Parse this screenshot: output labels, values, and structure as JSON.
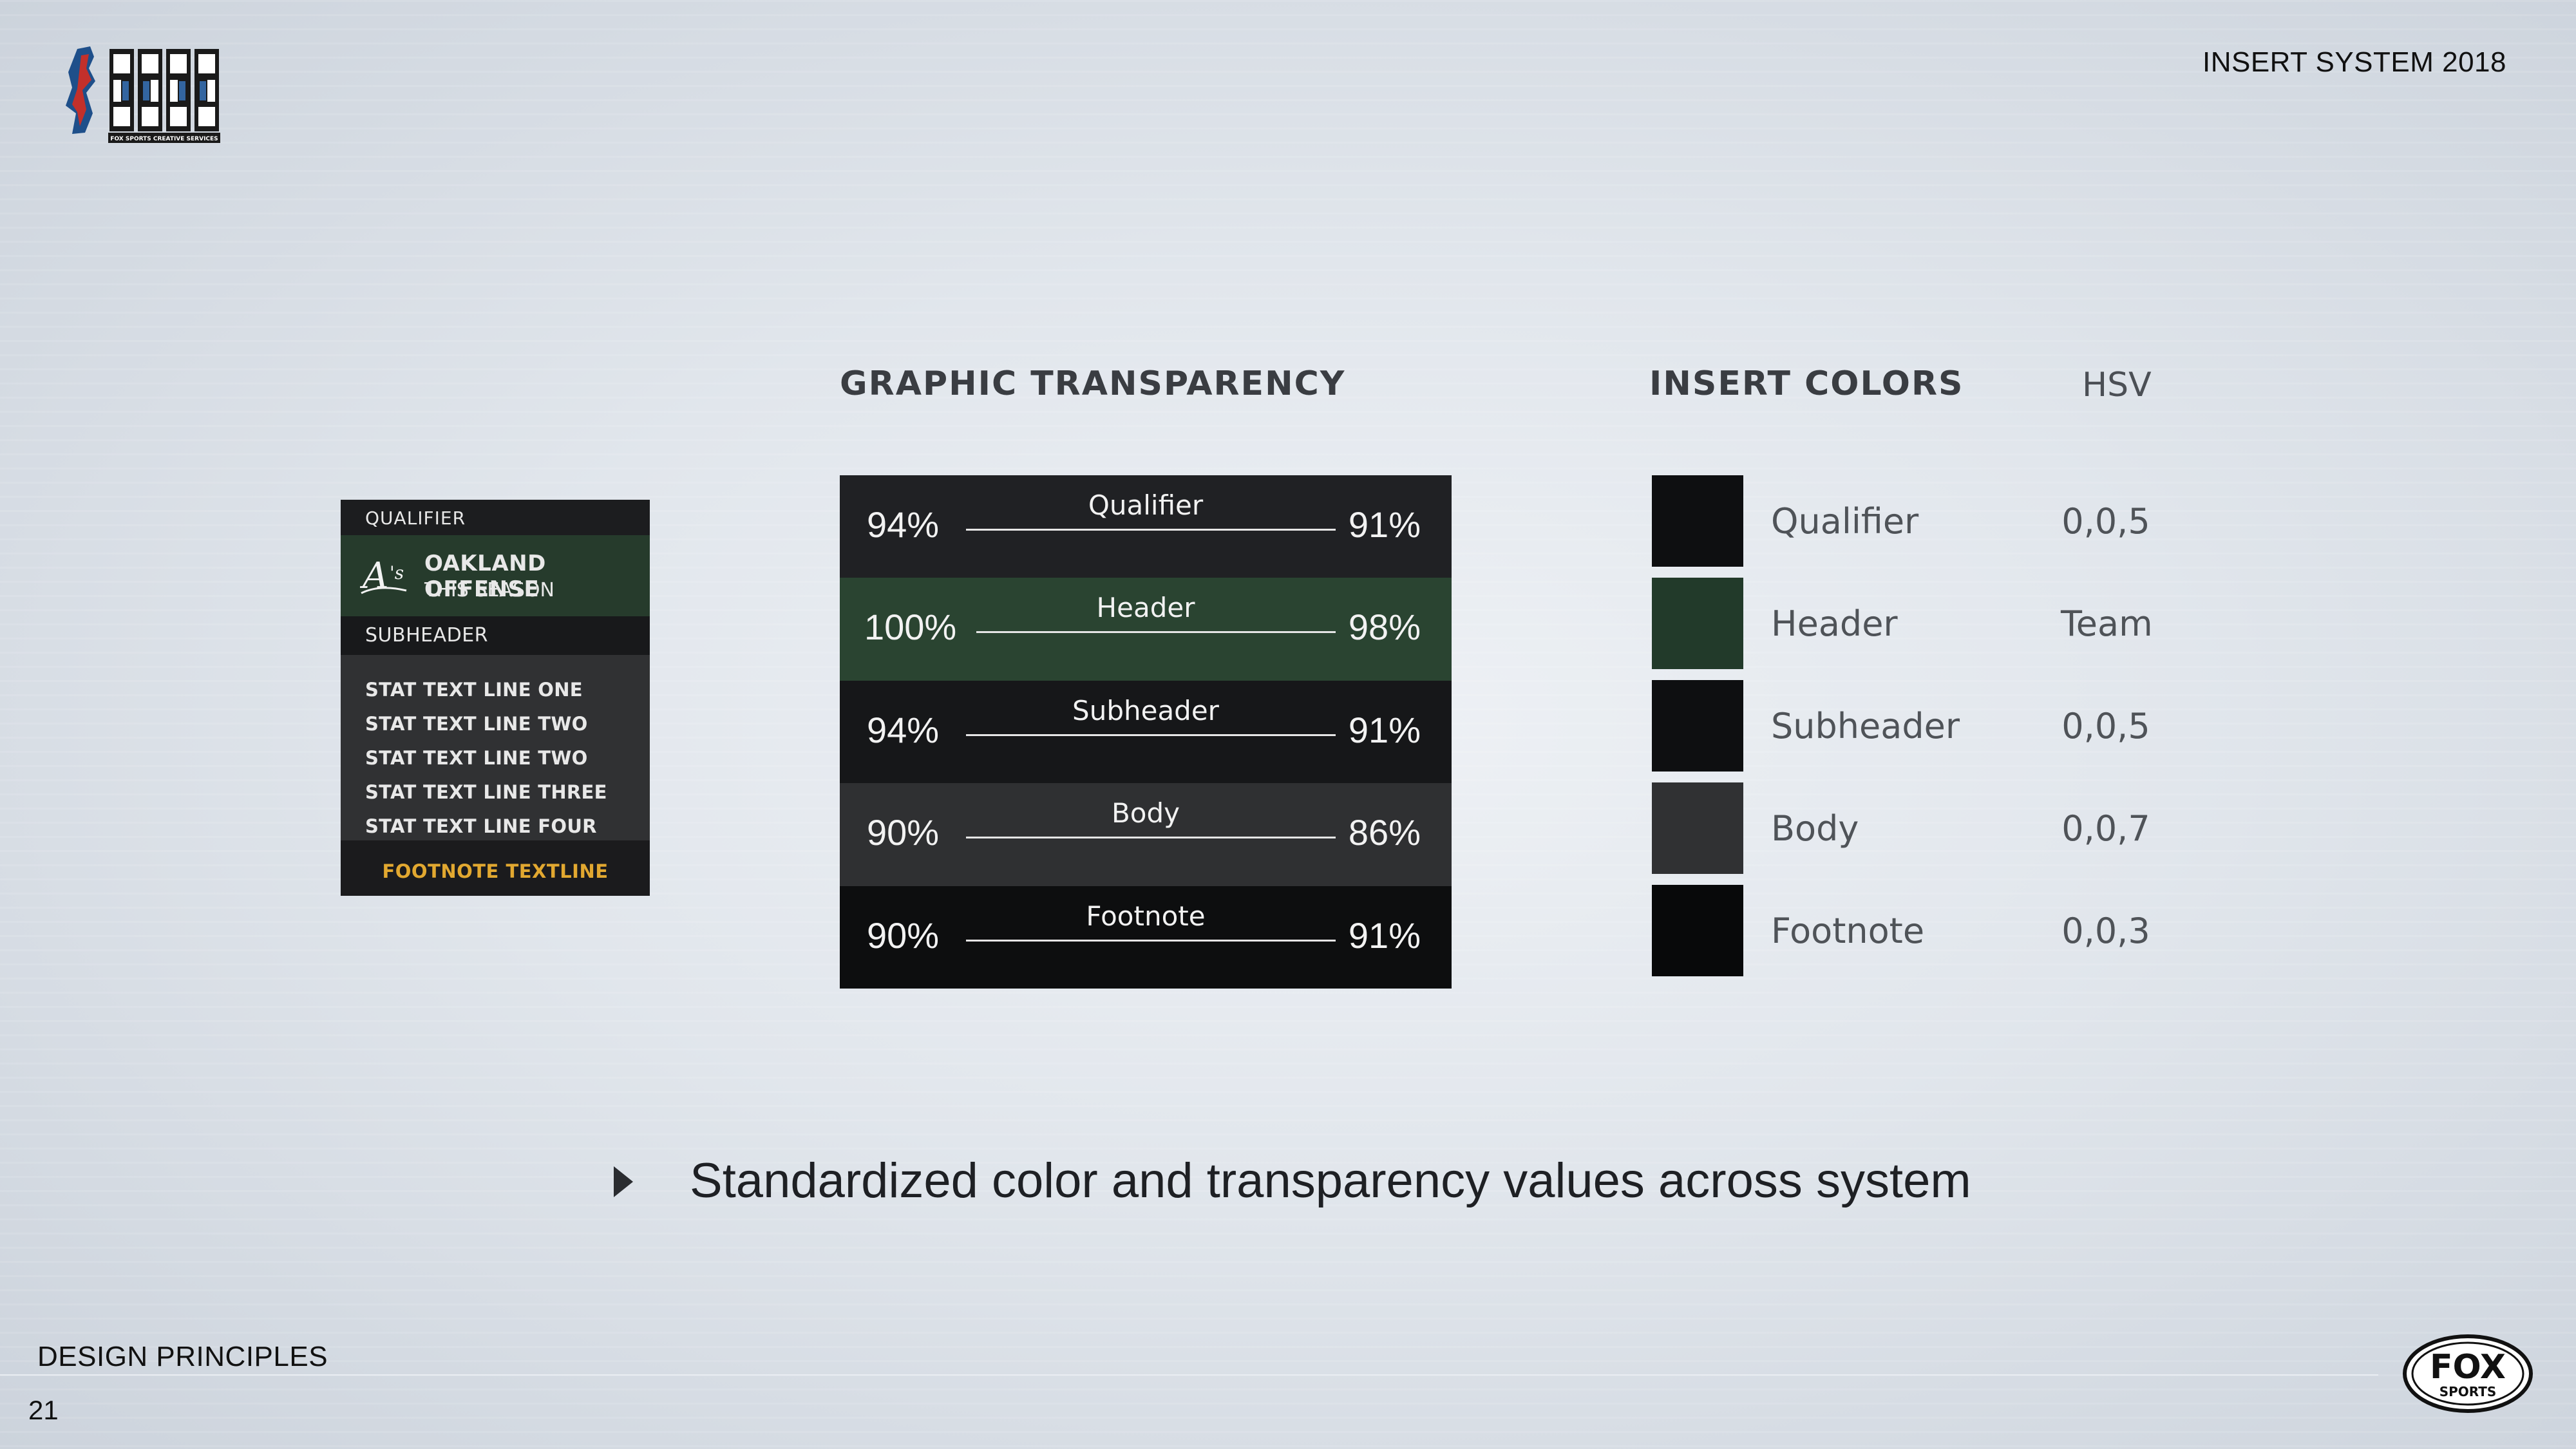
{
  "header": {
    "system_title": "INSERT SYSTEM 2018",
    "logo_caption": "FOX SPORTS CREATIVE SERVICES"
  },
  "graphic_transparency": {
    "heading": "GRAPHIC TRANSPARENCY",
    "rows": [
      {
        "label": "Qualifier",
        "left": "94%",
        "right": "91%",
        "color": "#202124"
      },
      {
        "label": "Header",
        "left": "100%",
        "right": "98%",
        "color": "#2a4431"
      },
      {
        "label": "Subheader",
        "left": "94%",
        "right": "91%",
        "color": "#161719"
      },
      {
        "label": "Body",
        "left": "90%",
        "right": "86%",
        "color": "#2f3032"
      },
      {
        "label": "Footnote",
        "left": "90%",
        "right": "91%",
        "color": "#0d0e0f"
      }
    ]
  },
  "insert_colors": {
    "heading": "INSERT COLORS",
    "hsv_heading": "HSV",
    "rows": [
      {
        "label": "Qualifier",
        "hsv": "0,0,5",
        "swatch": "#0e0f11"
      },
      {
        "label": "Header",
        "hsv": "Team",
        "swatch": "#223a2a"
      },
      {
        "label": "Subheader",
        "hsv": "0,0,5",
        "swatch": "#0e0f11"
      },
      {
        "label": "Body",
        "hsv": "0,0,7",
        "swatch": "#303133"
      },
      {
        "label": "Footnote",
        "hsv": "0,0,3",
        "swatch": "#08090a"
      }
    ]
  },
  "sample_graphic": {
    "qualifier": "QUALIFIER",
    "header_line1": "OAKLAND OFFENSE",
    "header_line2": "THIS SEASON",
    "subheader": "SUBHEADER",
    "stat_lines": [
      "STAT TEXT LINE ONE",
      "STAT TEXT LINE TWO",
      "STAT TEXT LINE TWO",
      "STAT TEXT LINE THREE",
      "STAT TEXT LINE FOUR"
    ],
    "footnote": "FOOTNOTE TEXTLINE",
    "footnote_color": "#e2a830"
  },
  "bullet": {
    "text": "Standardized color and transparency values across system"
  },
  "footer": {
    "section": "DESIGN PRINCIPLES",
    "page_number": "21",
    "brand_line1": "FOX",
    "brand_line2": "SPORTS"
  }
}
